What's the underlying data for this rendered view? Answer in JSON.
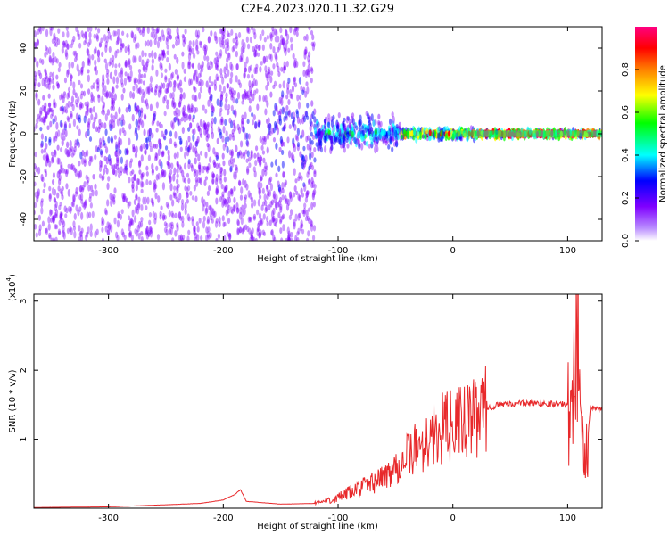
{
  "title": "C2E4.2023.020.11.32.G29",
  "chart_data": [
    {
      "type": "heatmap",
      "xlabel": "Height of straight line (km)",
      "ylabel": "Frequency (Hz)",
      "xlim": [
        -365,
        130
      ],
      "ylim": [
        -50,
        50
      ],
      "xticks": [
        -300,
        -200,
        -100,
        0,
        100
      ],
      "yticks": [
        -40,
        -20,
        0,
        20,
        40
      ],
      "colorbar": {
        "label": "Normalized spectral amplitude",
        "range": [
          0.0,
          1.0
        ],
        "ticks": [
          0.0,
          0.2,
          0.4,
          0.6,
          0.8
        ],
        "colors": [
          "#ffffff",
          "#7f00ff",
          "#0000ff",
          "#00ffff",
          "#00ff00",
          "#ffff00",
          "#ff8000",
          "#ff0000",
          "#ff0080"
        ]
      },
      "band": {
        "center_freq_hz": 0,
        "regions": [
          {
            "x": [
              -365,
              -160
            ],
            "spread_hz": 50,
            "amplitude": 0.15
          },
          {
            "x": [
              -160,
              -120
            ],
            "spread_hz": 50,
            "amplitude": 0.18
          },
          {
            "x": [
              -120,
              -45
            ],
            "spread_hz": 10,
            "amplitude": 0.3
          },
          {
            "x": [
              -45,
              20
            ],
            "spread_hz": 3,
            "amplitude": 0.6
          },
          {
            "x": [
              20,
              130
            ],
            "spread_hz": 2,
            "amplitude": 0.85
          }
        ]
      },
      "grid": false
    },
    {
      "type": "line",
      "xlabel": "Height of straight line (km)",
      "ylabel": "SNR (10 * v/v)",
      "y_multiplier": "(x10",
      "y_multiplier_exp": "4",
      "y_multiplier_close": ")",
      "xlim": [
        -365,
        130
      ],
      "ylim": [
        0,
        3.1
      ],
      "xticks": [
        -300,
        -200,
        -100,
        0,
        100
      ],
      "yticks": [
        1,
        2,
        3
      ],
      "color": "#e8292b",
      "series": [
        {
          "x": [
            -365,
            -300,
            -250,
            -220,
            -200,
            -190,
            -185,
            -180,
            -150,
            -120,
            -100,
            -80,
            -60,
            -40,
            -30,
            -20,
            -10,
            0,
            10,
            20,
            30,
            40,
            60,
            80,
            100,
            105,
            108,
            110,
            112,
            115,
            120,
            130
          ],
          "y": [
            0.01,
            0.02,
            0.05,
            0.07,
            0.12,
            0.2,
            0.27,
            0.1,
            0.06,
            0.07,
            0.15,
            0.3,
            0.45,
            0.75,
            0.9,
            1.0,
            1.15,
            1.2,
            1.25,
            1.3,
            1.45,
            1.5,
            1.52,
            1.52,
            1.5,
            1.45,
            3.05,
            2.6,
            1.2,
            0.6,
            1.45,
            1.44
          ]
        }
      ],
      "grid": false
    }
  ]
}
